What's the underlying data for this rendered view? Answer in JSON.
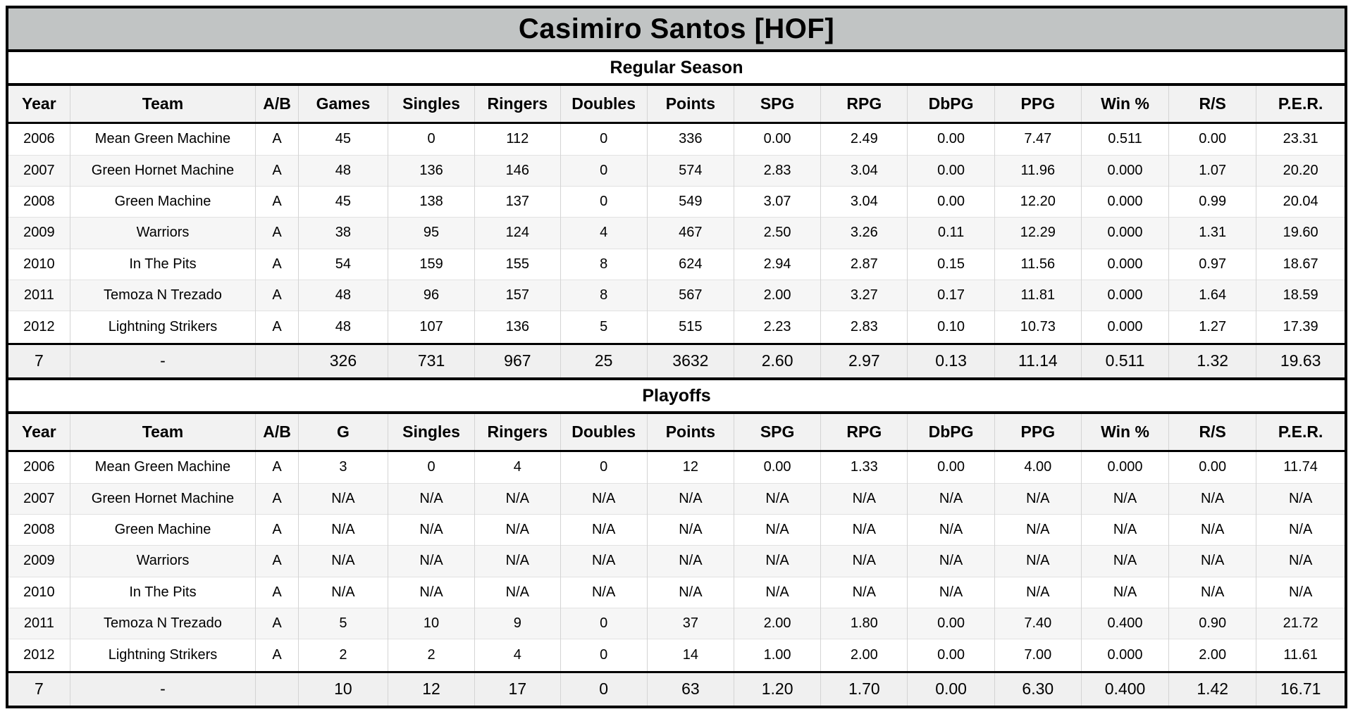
{
  "title": "Casimiro Santos [HOF]",
  "colors": {
    "title_bar_bg": "#c1c4c4",
    "header_bg": "#f2f2f2",
    "row_alt_bg": "#f6f6f6",
    "totals_bg": "#f0f0f0",
    "border_black": "#000000"
  },
  "sections": [
    {
      "name": "Regular Season",
      "columns": [
        "Year",
        "Team",
        "A/B",
        "Games",
        "Singles",
        "Ringers",
        "Doubles",
        "Points",
        "SPG",
        "RPG",
        "DbPG",
        "PPG",
        "Win %",
        "R/S",
        "P.E.R."
      ],
      "rows": [
        [
          "2006",
          "Mean Green Machine",
          "A",
          "45",
          "0",
          "112",
          "0",
          "336",
          "0.00",
          "2.49",
          "0.00",
          "7.47",
          "0.511",
          "0.00",
          "23.31"
        ],
        [
          "2007",
          "Green Hornet Machine",
          "A",
          "48",
          "136",
          "146",
          "0",
          "574",
          "2.83",
          "3.04",
          "0.00",
          "11.96",
          "0.000",
          "1.07",
          "20.20"
        ],
        [
          "2008",
          "Green Machine",
          "A",
          "45",
          "138",
          "137",
          "0",
          "549",
          "3.07",
          "3.04",
          "0.00",
          "12.20",
          "0.000",
          "0.99",
          "20.04"
        ],
        [
          "2009",
          "Warriors",
          "A",
          "38",
          "95",
          "124",
          "4",
          "467",
          "2.50",
          "3.26",
          "0.11",
          "12.29",
          "0.000",
          "1.31",
          "19.60"
        ],
        [
          "2010",
          "In The Pits",
          "A",
          "54",
          "159",
          "155",
          "8",
          "624",
          "2.94",
          "2.87",
          "0.15",
          "11.56",
          "0.000",
          "0.97",
          "18.67"
        ],
        [
          "2011",
          "Temoza N Trezado",
          "A",
          "48",
          "96",
          "157",
          "8",
          "567",
          "2.00",
          "3.27",
          "0.17",
          "11.81",
          "0.000",
          "1.64",
          "18.59"
        ],
        [
          "2012",
          "Lightning Strikers",
          "A",
          "48",
          "107",
          "136",
          "5",
          "515",
          "2.23",
          "2.83",
          "0.10",
          "10.73",
          "0.000",
          "1.27",
          "17.39"
        ]
      ],
      "totals": [
        "7",
        "-",
        "",
        "326",
        "731",
        "967",
        "25",
        "3632",
        "2.60",
        "2.97",
        "0.13",
        "11.14",
        "0.511",
        "1.32",
        "19.63"
      ]
    },
    {
      "name": "Playoffs",
      "columns": [
        "Year",
        "Team",
        "A/B",
        "G",
        "Singles",
        "Ringers",
        "Doubles",
        "Points",
        "SPG",
        "RPG",
        "DbPG",
        "PPG",
        "Win %",
        "R/S",
        "P.E.R."
      ],
      "rows": [
        [
          "2006",
          "Mean Green Machine",
          "A",
          "3",
          "0",
          "4",
          "0",
          "12",
          "0.00",
          "1.33",
          "0.00",
          "4.00",
          "0.000",
          "0.00",
          "11.74"
        ],
        [
          "2007",
          "Green Hornet Machine",
          "A",
          "N/A",
          "N/A",
          "N/A",
          "N/A",
          "N/A",
          "N/A",
          "N/A",
          "N/A",
          "N/A",
          "N/A",
          "N/A",
          "N/A"
        ],
        [
          "2008",
          "Green Machine",
          "A",
          "N/A",
          "N/A",
          "N/A",
          "N/A",
          "N/A",
          "N/A",
          "N/A",
          "N/A",
          "N/A",
          "N/A",
          "N/A",
          "N/A"
        ],
        [
          "2009",
          "Warriors",
          "A",
          "N/A",
          "N/A",
          "N/A",
          "N/A",
          "N/A",
          "N/A",
          "N/A",
          "N/A",
          "N/A",
          "N/A",
          "N/A",
          "N/A"
        ],
        [
          "2010",
          "In The Pits",
          "A",
          "N/A",
          "N/A",
          "N/A",
          "N/A",
          "N/A",
          "N/A",
          "N/A",
          "N/A",
          "N/A",
          "N/A",
          "N/A",
          "N/A"
        ],
        [
          "2011",
          "Temoza N Trezado",
          "A",
          "5",
          "10",
          "9",
          "0",
          "37",
          "2.00",
          "1.80",
          "0.00",
          "7.40",
          "0.400",
          "0.90",
          "21.72"
        ],
        [
          "2012",
          "Lightning Strikers",
          "A",
          "2",
          "2",
          "4",
          "0",
          "14",
          "1.00",
          "2.00",
          "0.00",
          "7.00",
          "0.000",
          "2.00",
          "11.61"
        ]
      ],
      "totals": [
        "7",
        "-",
        "",
        "10",
        "12",
        "17",
        "0",
        "63",
        "1.20",
        "1.70",
        "0.00",
        "6.30",
        "0.400",
        "1.42",
        "16.71"
      ]
    }
  ]
}
